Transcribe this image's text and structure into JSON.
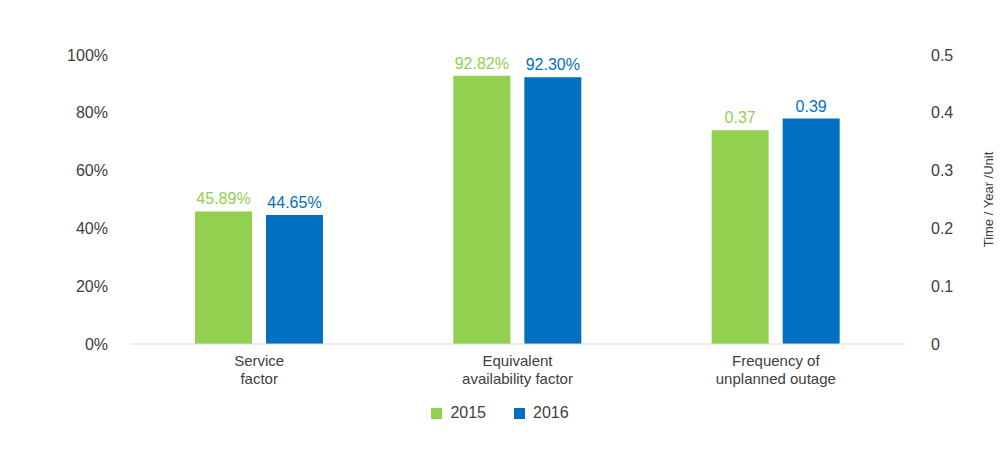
{
  "chart_data": {
    "type": "bar",
    "categories": [
      "Service factor",
      "Equivalent availability factor",
      "Frequency of unplanned outage"
    ],
    "series": [
      {
        "name": "2015",
        "color": "#92d050",
        "values": [
          45.89,
          92.82,
          null
        ],
        "value_labels": [
          "45.89%",
          "92.82%",
          null
        ]
      },
      {
        "name": "2016",
        "color": "#0070c0",
        "values": [
          44.65,
          92.3,
          null
        ],
        "value_labels": [
          "44.65%",
          "92.30%",
          null
        ]
      },
      {
        "name": "2015",
        "color": "#92d050",
        "values": [
          null,
          null,
          0.37
        ],
        "axis": "y2"
      },
      {
        "name": "2016",
        "color": "#0070c0",
        "values": [
          null,
          null,
          0.39
        ],
        "axis": "y2"
      }
    ],
    "ylim": [
      0,
      100
    ],
    "yticks": [
      {
        "value": 0,
        "label": "0%"
      },
      {
        "value": 20,
        "label": "20%"
      },
      {
        "value": 40,
        "label": "40%"
      },
      {
        "value": 60,
        "label": "60%"
      },
      {
        "value": 80,
        "label": "80%"
      },
      {
        "value": 100,
        "label": "100%"
      }
    ],
    "y2lim": [
      0,
      0.5
    ],
    "y2ticks": [
      0,
      0.1,
      0.2,
      0.3,
      0.4,
      0.5
    ],
    "y2label": "Time / Year /Unit",
    "data_labels": true,
    "grid": false,
    "legend": "bottom"
  }
}
